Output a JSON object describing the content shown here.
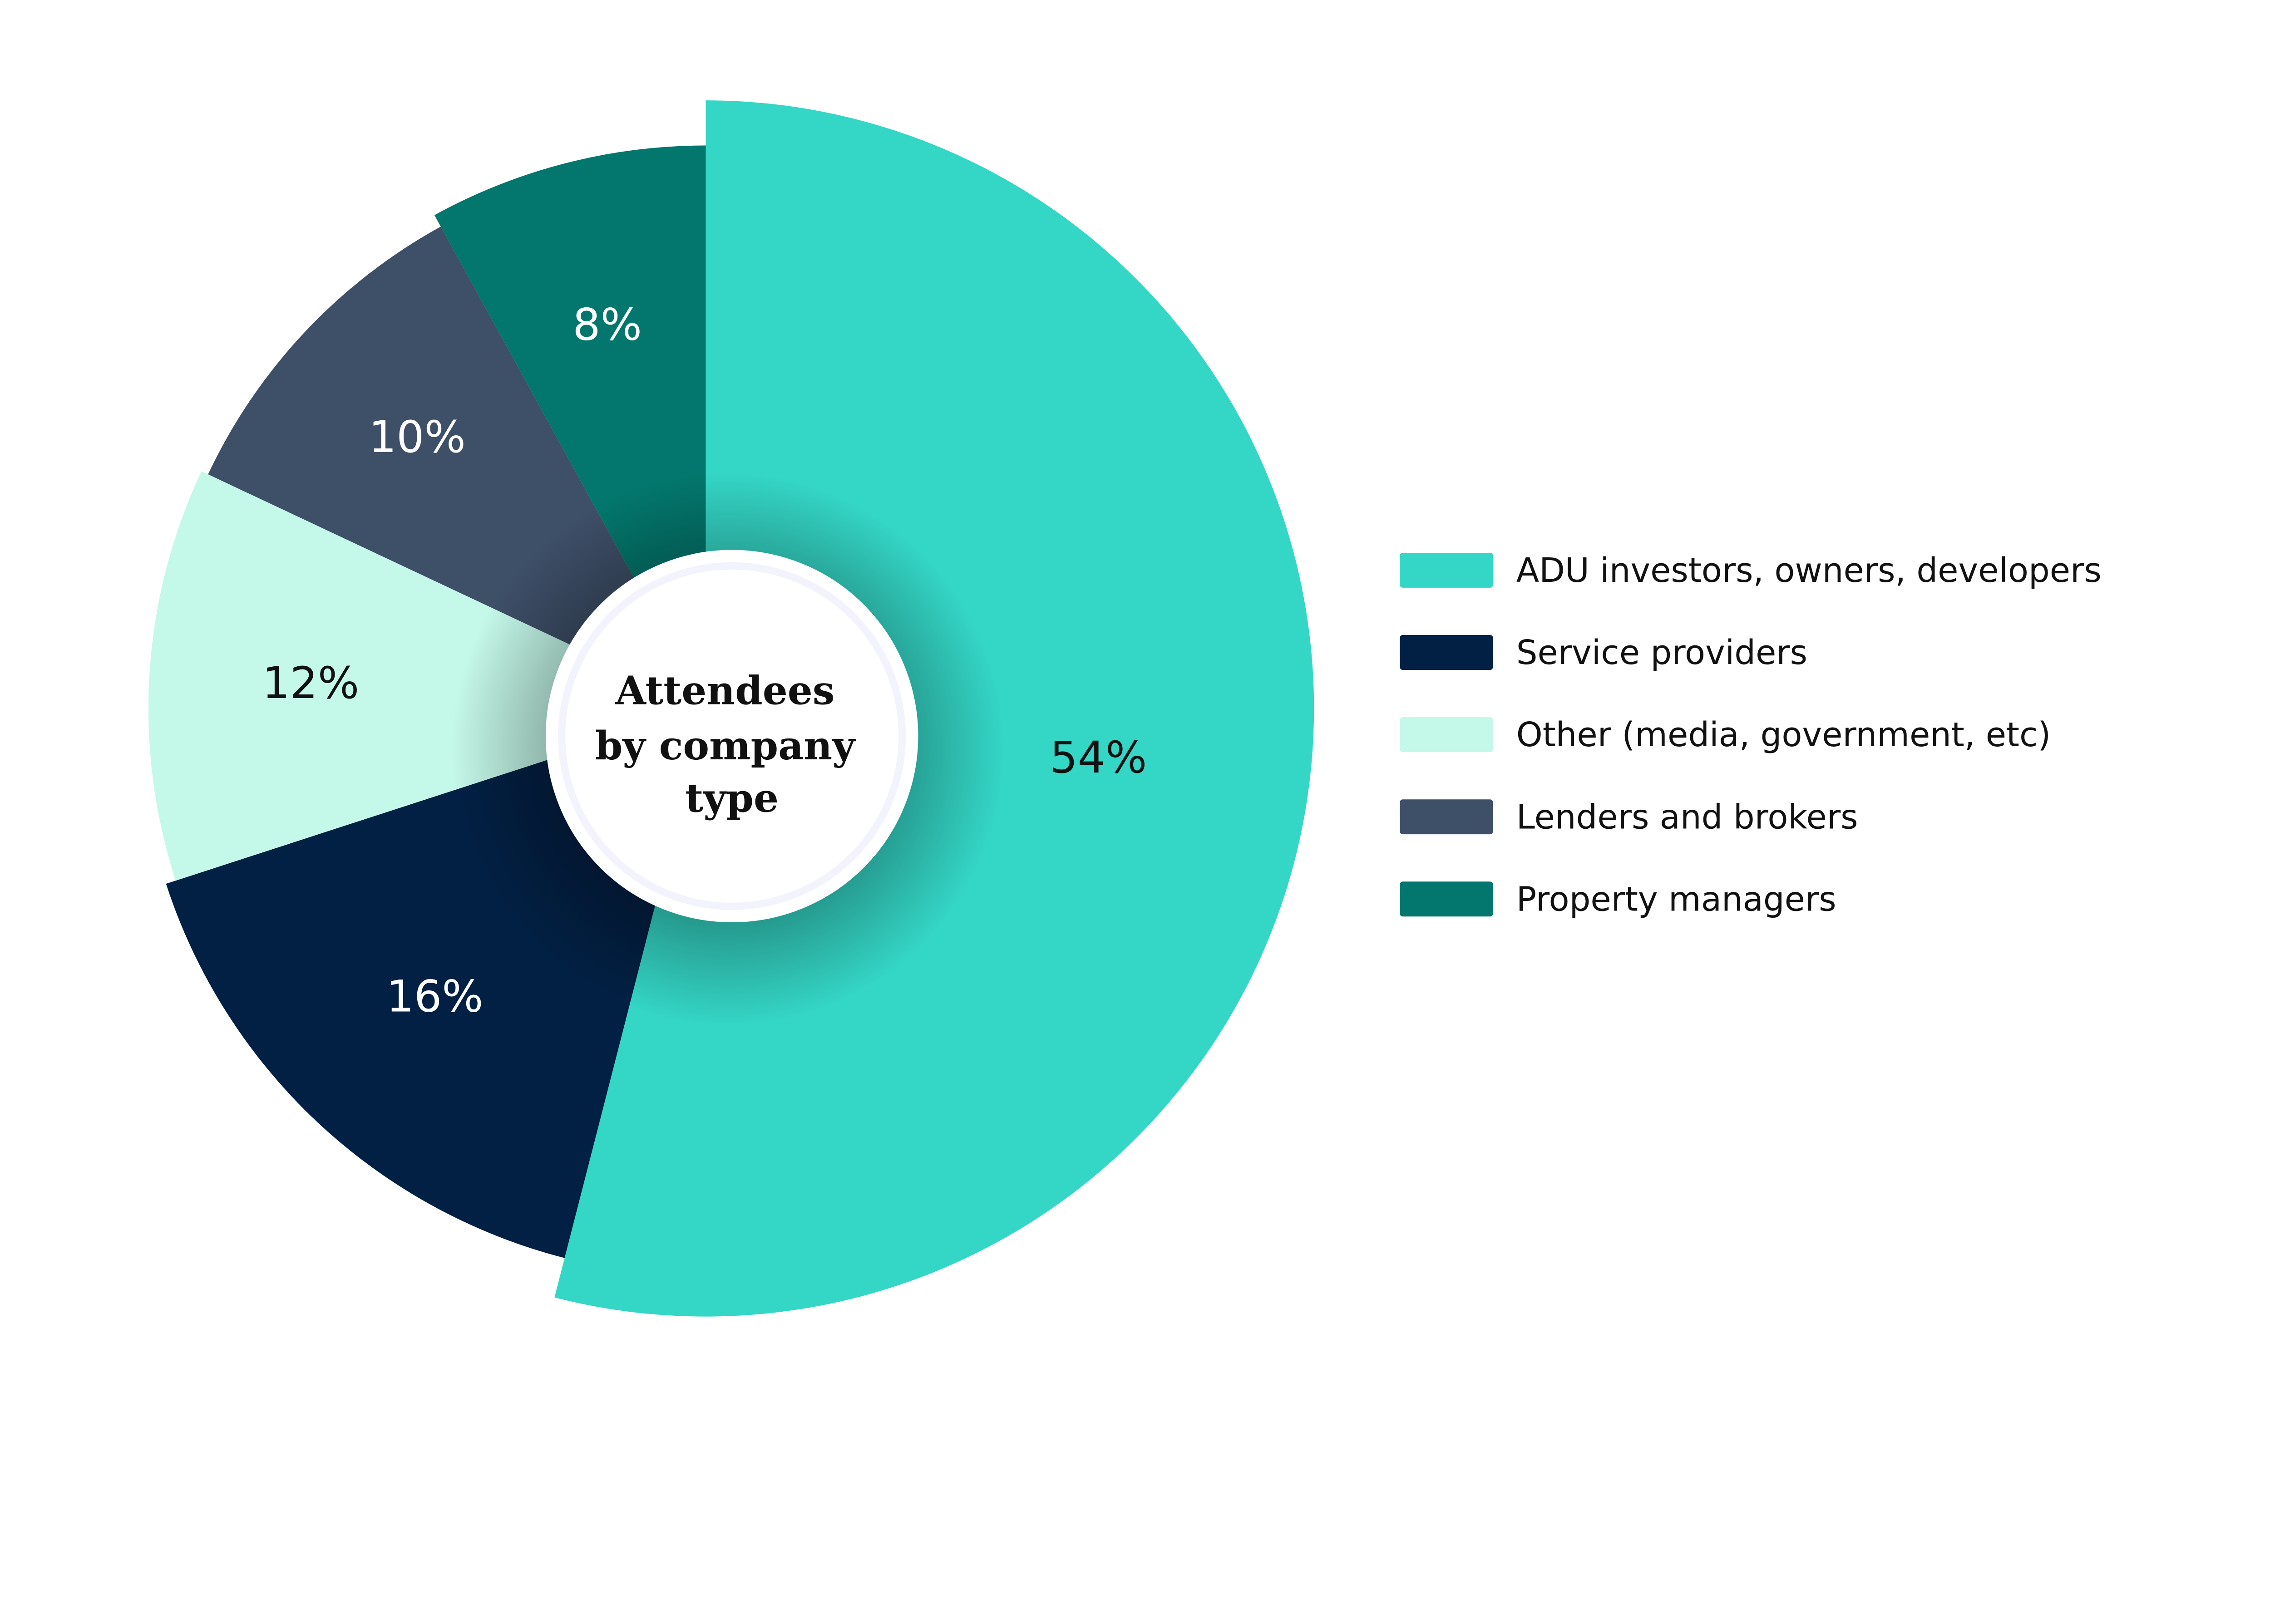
{
  "chart_data": {
    "type": "pie",
    "title": "Attendees by company type",
    "title_lines": [
      "Attendees",
      "by company",
      "type"
    ],
    "categories": [
      "ADU investors, owners, developers",
      "Service providers",
      "Other (media, government, etc)",
      "Lenders and brokers",
      "Property managers"
    ],
    "values": [
      54,
      16,
      12,
      10,
      8
    ],
    "labels": [
      "54%",
      "16%",
      "12%",
      "10%",
      "8%"
    ],
    "colors": [
      "#34D6C6",
      "#022044",
      "#C4F8E9",
      "#3E4F68",
      "#03776D"
    ],
    "label_colors": [
      "#111111",
      "#ffffff",
      "#111111",
      "#ffffff",
      "#ffffff"
    ],
    "legend_position": "right",
    "start": "top, clockwise"
  }
}
